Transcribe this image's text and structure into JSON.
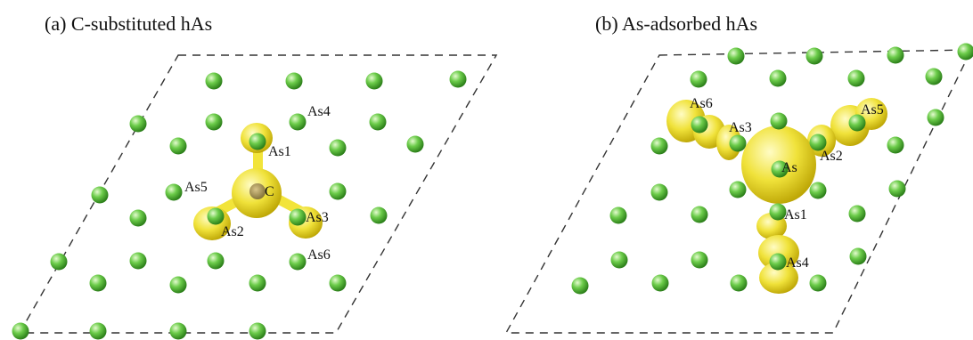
{
  "colors": {
    "atom_light": "#d6f5b8",
    "atom_mid": "#6ccc4a",
    "atom_dark": "#2e8a1c",
    "density_light": "#fffbb0",
    "density_mid": "#f2e43a",
    "density_dark": "#c9b000",
    "cell_line": "#333333"
  },
  "panels": [
    {
      "id": "a",
      "title": "(a) C-substituted hAs",
      "labels": [
        "As4",
        "As1",
        "As5",
        "C",
        "As3",
        "As2",
        "As6"
      ]
    },
    {
      "id": "b",
      "title": "(b) As-adsorbed hAs",
      "labels": [
        "As6",
        "As3",
        "As5",
        "As",
        "As2",
        "As1",
        "As4"
      ]
    }
  ]
}
